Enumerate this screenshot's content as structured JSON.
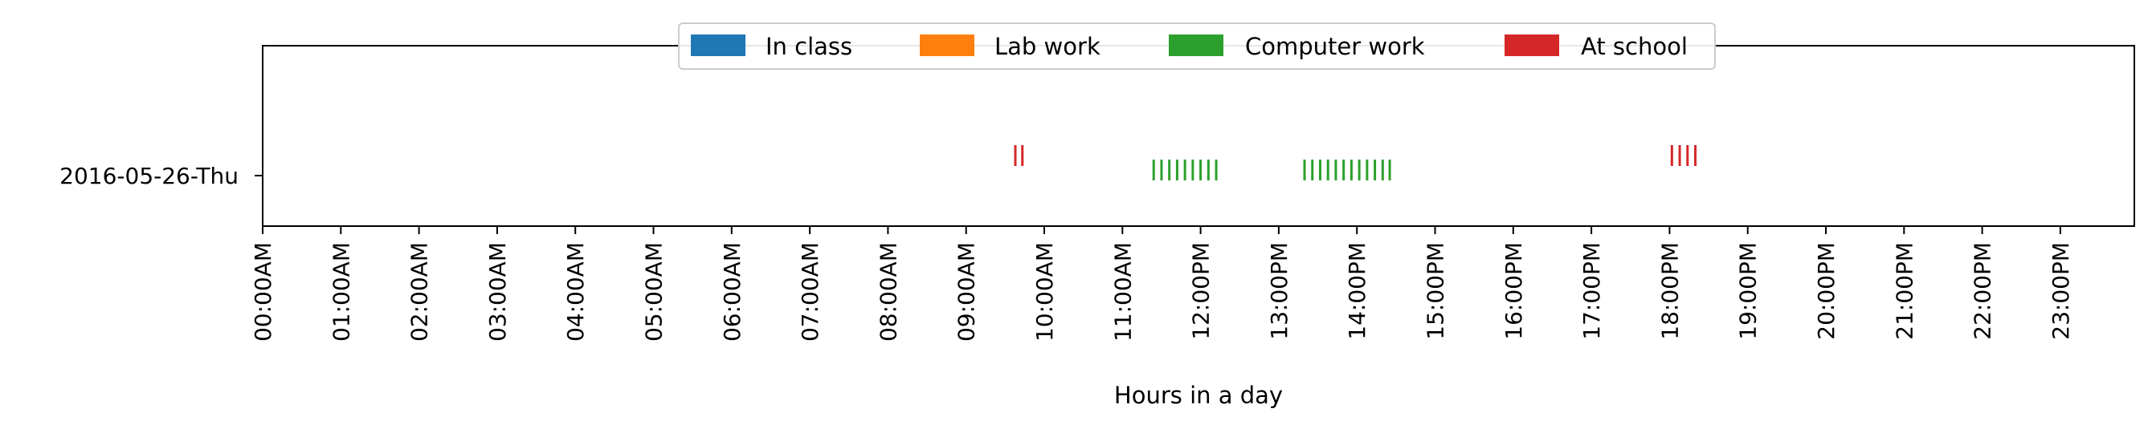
{
  "chart_data": {
    "type": "event-timeline",
    "xlabel": "Hours in a day",
    "xlim": [
      0,
      24
    ],
    "x_tick_labels": [
      "00:00AM",
      "01:00AM",
      "02:00AM",
      "03:00AM",
      "04:00AM",
      "05:00AM",
      "06:00AM",
      "07:00AM",
      "08:00AM",
      "09:00AM",
      "10:00AM",
      "11:00AM",
      "12:00PM",
      "13:00PM",
      "14:00PM",
      "15:00PM",
      "16:00PM",
      "17:00PM",
      "18:00PM",
      "19:00PM",
      "20:00PM",
      "21:00PM",
      "22:00PM",
      "23:00PM"
    ],
    "categories": [
      "2016-05-26-Thu"
    ],
    "legend_position": "top-center",
    "series": [
      {
        "name": "In class",
        "color": "#1f77b4",
        "events": []
      },
      {
        "name": "Lab work",
        "color": "#ff7f0e",
        "events": []
      },
      {
        "name": "Computer work",
        "color": "#2ca02c",
        "events": [
          11.4,
          11.5,
          11.6,
          11.7,
          11.8,
          11.9,
          12.0,
          12.1,
          12.2,
          13.33,
          13.43,
          13.53,
          13.63,
          13.73,
          13.83,
          13.93,
          14.03,
          14.13,
          14.23,
          14.33,
          14.42
        ]
      },
      {
        "name": "At school",
        "color": "#d62728",
        "events": [
          9.63,
          9.72,
          18.03,
          18.13,
          18.23,
          18.33
        ]
      }
    ]
  }
}
